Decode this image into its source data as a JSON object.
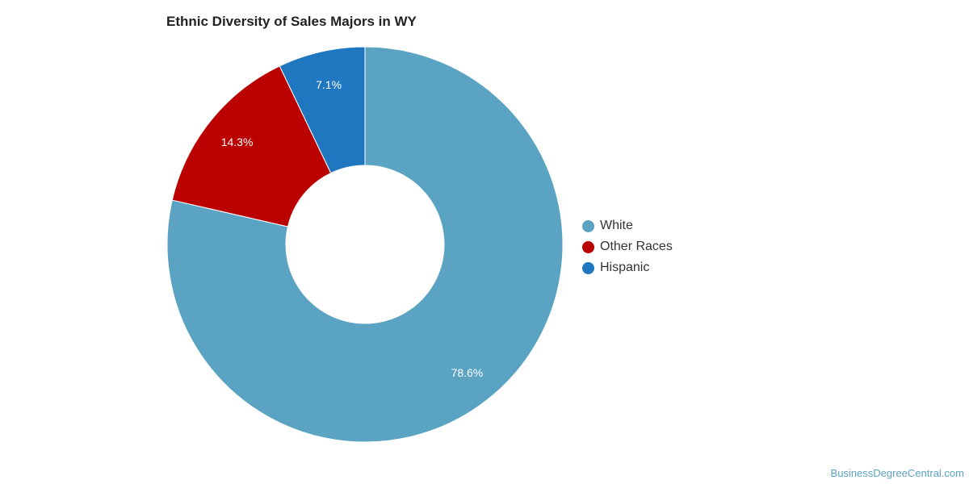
{
  "chart_data": {
    "type": "pie",
    "title": "Ethnic Diversity of Sales Majors in WY",
    "categories": [
      "White",
      "Other Races",
      "Hispanic"
    ],
    "values": [
      78.6,
      14.3,
      7.1
    ],
    "labels": [
      "78.6%",
      "14.3%",
      "7.1%"
    ],
    "colors": [
      "#5ba3c2",
      "#bb0000",
      "#1f77c0"
    ],
    "donut": true,
    "legend_position": "right"
  },
  "footer": {
    "credit": "BusinessDegreeCentral.com"
  }
}
